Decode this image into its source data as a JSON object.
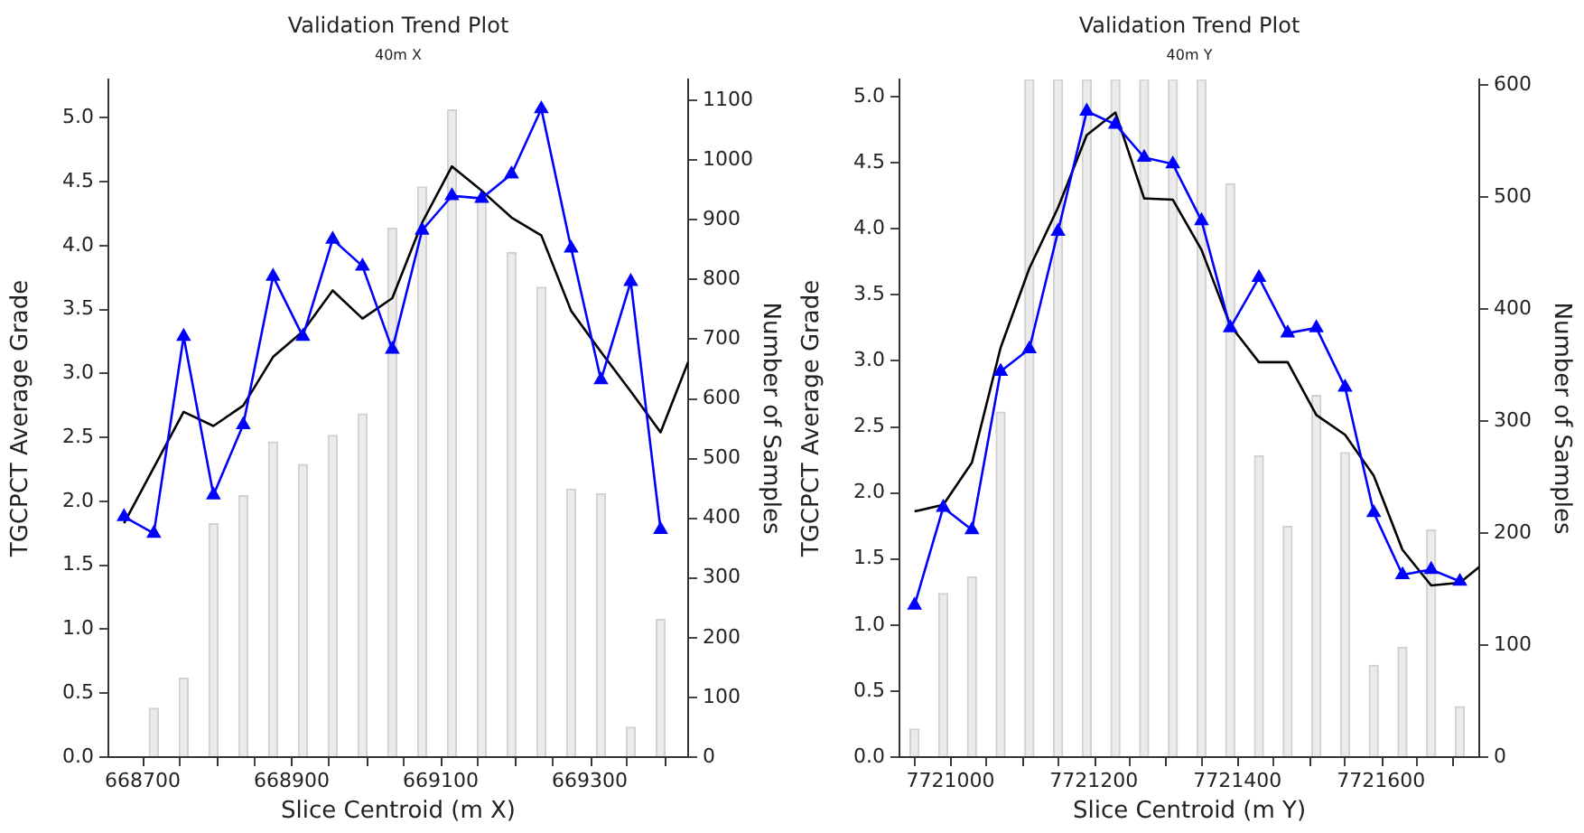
{
  "chart_data": [
    {
      "type": "bar",
      "title": "Validation Trend Plot",
      "subtitle": "40m X",
      "xlabel": "Slice Centroid (m X)",
      "ylabel": "TGCPCT Average Grade",
      "y2label": "Number of Samples",
      "x": [
        668675,
        668715,
        668755,
        668795,
        668835,
        668875,
        668915,
        668955,
        668995,
        669035,
        669075,
        669115,
        669155,
        669195,
        669235,
        669275,
        669315,
        669355,
        669395
      ],
      "series": [
        {
          "axis": "y2",
          "color": "#ebebeb",
          "values": [
            null,
            82,
            132,
            391,
            438,
            528,
            490,
            539,
            575,
            886,
            955,
            1084,
            936,
            845,
            787,
            449,
            441,
            50,
            231
          ]
        },
        {
          "type": "line",
          "color": "#0000ff",
          "marker": "triangle",
          "values": [
            1.88,
            1.75,
            3.29,
            2.05,
            2.6,
            3.76,
            3.29,
            4.05,
            3.84,
            3.19,
            4.12,
            4.39,
            4.37,
            4.56,
            5.07,
            3.98,
            2.95,
            3.72,
            1.78
          ]
        },
        {
          "type": "line",
          "color": "#000000",
          "x": [
            668675,
            668755,
            668795,
            668835,
            668875,
            668915,
            668955,
            668995,
            669035,
            669075,
            669115,
            669155,
            669195,
            669235,
            669275,
            669315,
            669355,
            669395,
            669432
          ],
          "values": [
            1.83,
            2.7,
            2.59,
            2.75,
            3.13,
            3.33,
            3.65,
            3.43,
            3.59,
            4.18,
            4.62,
            4.43,
            4.22,
            4.08,
            3.49,
            3.17,
            2.86,
            2.54,
            3.09
          ]
        }
      ],
      "xlim": [
        668654,
        669432
      ],
      "xticks": [
        668700,
        {
          "value": 668800,
          "label": null
        },
        668900,
        {
          "value": 669000,
          "label": null
        },
        669100,
        {
          "value": 669200,
          "label": null
        },
        669300,
        {
          "value": 669400,
          "label": null
        }
      ],
      "ylim": [
        0,
        5.3
      ],
      "yticks": [
        {
          "value": 0,
          "label": "0.0"
        },
        0.5,
        {
          "value": 1,
          "label": "1.0"
        },
        1.5,
        {
          "value": 2,
          "label": "2.0"
        },
        2.5,
        {
          "value": 3,
          "label": "3.0"
        },
        3.5,
        {
          "value": 4,
          "label": "4.0"
        },
        4.5,
        {
          "value": 5,
          "label": "5.0"
        }
      ],
      "y2lim": [
        0,
        1135
      ],
      "y2ticks": [
        0,
        100,
        200,
        300,
        400,
        500,
        600,
        700,
        800,
        900,
        1000,
        1100
      ],
      "grid": false,
      "legend": false
    },
    {
      "type": "bar",
      "title": "Validation Trend Plot",
      "subtitle": "40m Y",
      "xlabel": "Slice Centroid (m Y)",
      "ylabel": "TGCPCT Average Grade",
      "y2label": "Number of Samples",
      "x": [
        7720950,
        7720990,
        7721030,
        7721070,
        7721110,
        7721150,
        7721190,
        7721230,
        7721270,
        7721310,
        7721350,
        7721390,
        7721430,
        7721470,
        7721510,
        7721550,
        7721590,
        7721630,
        7721670,
        7721710
      ],
      "series": [
        {
          "axis": "y2",
          "color": "#ebebeb",
          "values": [
            25,
            146,
            161,
            308,
            605,
            605,
            605,
            605,
            605,
            605,
            605,
            512,
            269,
            206,
            323,
            272,
            82,
            98,
            203,
            45
          ]
        },
        {
          "type": "line",
          "color": "#0000ff",
          "marker": "triangle",
          "values": [
            1.15,
            1.89,
            1.72,
            2.92,
            3.09,
            3.98,
            4.89,
            4.79,
            4.54,
            4.49,
            4.06,
            3.25,
            3.63,
            3.21,
            3.25,
            2.8,
            1.85,
            1.38,
            1.42,
            1.33
          ]
        },
        {
          "type": "line",
          "color": "#000000",
          "x": [
            7720950,
            7720990,
            7721030,
            7721070,
            7721110,
            7721150,
            7721190,
            7721230,
            7721270,
            7721310,
            7721350,
            7721390,
            7721430,
            7721470,
            7721510,
            7721550,
            7721590,
            7721630,
            7721670,
            7721710,
            7721737
          ],
          "values": [
            1.86,
            1.91,
            2.23,
            3.1,
            3.7,
            4.16,
            4.71,
            4.88,
            4.23,
            4.22,
            3.84,
            3.27,
            2.99,
            2.99,
            2.59,
            2.44,
            2.13,
            1.57,
            1.3,
            1.32,
            1.44
          ]
        }
      ],
      "xlim": [
        7720929,
        7721737
      ],
      "xticks": [
        7721000,
        {
          "value": 7721100,
          "label": null
        },
        7721200,
        {
          "value": 7721300,
          "label": null
        },
        7721400,
        {
          "value": 7721500,
          "label": null
        },
        7721600,
        {
          "value": 7721700,
          "label": null
        }
      ],
      "ylim": [
        0,
        5.13
      ],
      "yticks": [
        {
          "value": 0,
          "label": "0.0"
        },
        0.5,
        {
          "value": 1,
          "label": "1.0"
        },
        1.5,
        {
          "value": 2,
          "label": "2.0"
        },
        2.5,
        {
          "value": 3,
          "label": "3.0"
        },
        3.5,
        {
          "value": 4,
          "label": "4.0"
        },
        4.5,
        {
          "value": 5,
          "label": "5.0"
        }
      ],
      "y2lim": [
        0,
        605
      ],
      "y2ticks": [
        0,
        100,
        200,
        300,
        400,
        500,
        600
      ],
      "grid": false,
      "legend": false
    }
  ]
}
